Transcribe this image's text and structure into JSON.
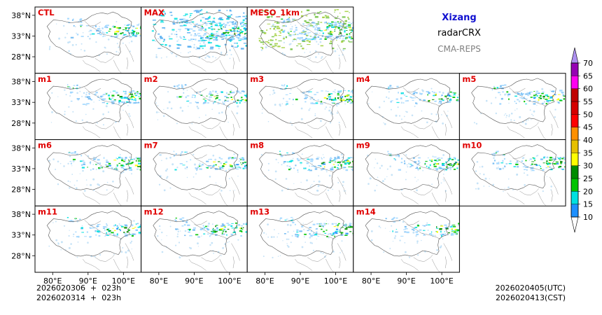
{
  "chart_data": {
    "type": "heatmap",
    "layout": "ensemble panel grid, 4 rows x 5 columns",
    "product": "radarCRX",
    "region": "Xizang",
    "system": "CMA-REPS",
    "x_tick_labels": [
      "80°E",
      "90°E",
      "100°E"
    ],
    "y_tick_labels": [
      "38°N",
      "33°N",
      "28°N"
    ],
    "x_ticks_deg": [
      80,
      90,
      100
    ],
    "y_ticks_deg": [
      38,
      33,
      28
    ],
    "xlim": [
      75,
      105
    ],
    "ylim": [
      24,
      40
    ],
    "colorbar": {
      "levels": [
        10,
        15,
        20,
        25,
        30,
        35,
        40,
        45,
        50,
        55,
        60,
        65,
        70
      ],
      "tick_labels": [
        "10",
        "15",
        "20",
        "25",
        "30",
        "35",
        "40",
        "45",
        "50",
        "55",
        "60",
        "65",
        "70"
      ],
      "colors": [
        "#1e90ff",
        "#00e0e0",
        "#00c400",
        "#008c00",
        "#ffff00",
        "#e6c000",
        "#ff9000",
        "#ff0000",
        "#d60000",
        "#c00000",
        "#ff00f0",
        "#9600b4",
        "#ad90f0"
      ],
      "extend": "both"
    },
    "panels": [
      {
        "label": "CTL",
        "row": 0,
        "col": 0,
        "coverage": 0.5
      },
      {
        "label": "MAX",
        "row": 0,
        "col": 1,
        "coverage": 1.0
      },
      {
        "label": "MESO_1km",
        "row": 0,
        "col": 2,
        "coverage": 0.9
      },
      {
        "label": "m1",
        "row": 1,
        "col": 0,
        "coverage": 0.45
      },
      {
        "label": "m2",
        "row": 1,
        "col": 1,
        "coverage": 0.4
      },
      {
        "label": "m3",
        "row": 1,
        "col": 2,
        "coverage": 0.45
      },
      {
        "label": "m4",
        "row": 1,
        "col": 3,
        "coverage": 0.35
      },
      {
        "label": "m5",
        "row": 1,
        "col": 4,
        "coverage": 0.45
      },
      {
        "label": "m6",
        "row": 2,
        "col": 0,
        "coverage": 0.45
      },
      {
        "label": "m7",
        "row": 2,
        "col": 1,
        "coverage": 0.4
      },
      {
        "label": "m8",
        "row": 2,
        "col": 2,
        "coverage": 0.5
      },
      {
        "label": "m9",
        "row": 2,
        "col": 3,
        "coverage": 0.45
      },
      {
        "label": "m10",
        "row": 2,
        "col": 4,
        "coverage": 0.45
      },
      {
        "label": "m11",
        "row": 3,
        "col": 0,
        "coverage": 0.4
      },
      {
        "label": "m12",
        "row": 3,
        "col": 1,
        "coverage": 0.45
      },
      {
        "label": "m13",
        "row": 3,
        "col": 2,
        "coverage": 0.45
      },
      {
        "label": "m14",
        "row": 3,
        "col": 3,
        "coverage": 0.35
      }
    ]
  },
  "footer": {
    "init_utc": "2026020306  +  023h",
    "init_cst": "2026020314  +  023h",
    "valid_utc": "2026020405(UTC)",
    "valid_cst": "2026020413(CST)"
  }
}
